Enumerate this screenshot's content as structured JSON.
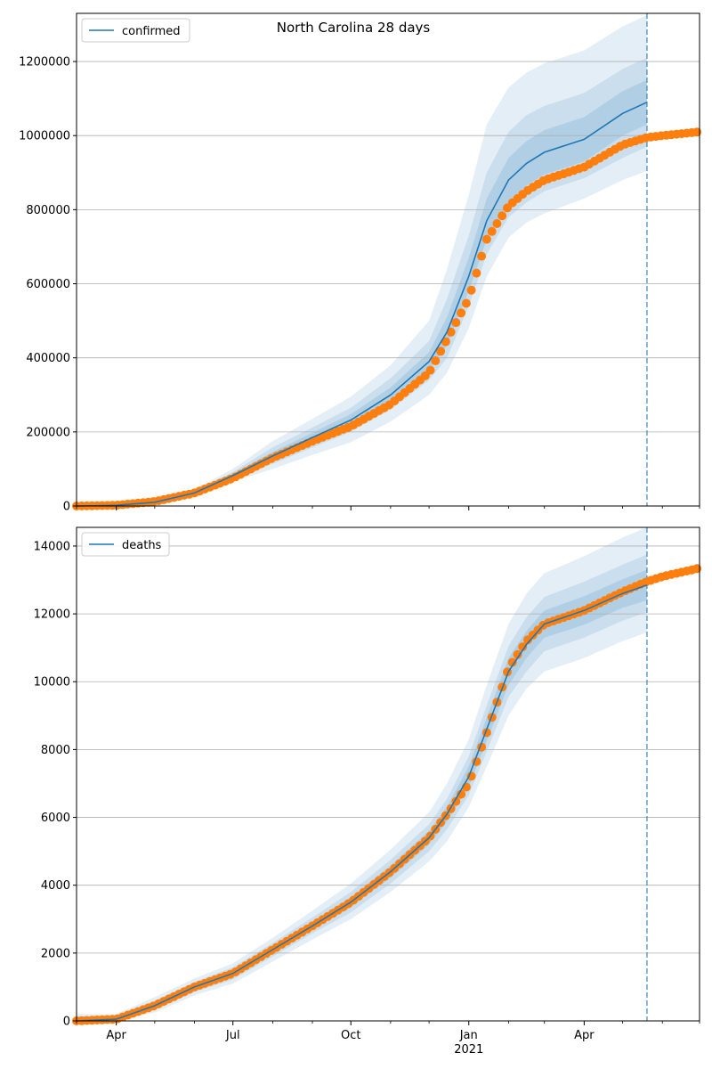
{
  "figure": {
    "title": "North Carolina 28 days",
    "colors": {
      "model": "#1f77b4",
      "observed": "#ff7f0e",
      "band": "#1f77b4",
      "grid": "#b0b0b0"
    }
  },
  "x_axis": {
    "type": "date",
    "range": [
      "2020-03-01",
      "2021-06-30"
    ],
    "major_ticks": [
      {
        "date": "2020-04-01",
        "label": "Apr"
      },
      {
        "date": "2020-07-01",
        "label": "Jul"
      },
      {
        "date": "2020-10-01",
        "label": "Oct"
      },
      {
        "date": "2021-01-01",
        "label": "Jan"
      },
      {
        "date": "2021-04-01",
        "label": "Apr"
      }
    ],
    "year_label": {
      "date": "2021-01-01",
      "label": "2021"
    },
    "minor_ticks": [
      "2020-03-01",
      "2020-05-01",
      "2020-06-01",
      "2020-08-01",
      "2020-09-01",
      "2020-11-01",
      "2020-12-01",
      "2021-02-01",
      "2021-03-01",
      "2021-05-01",
      "2021-06-01",
      "2021-06-30"
    ],
    "forecast_date": "2021-05-20"
  },
  "chart_data": [
    {
      "type": "line",
      "legend": "confirmed",
      "legend_position": "top-left",
      "ylim": [
        0,
        1330000
      ],
      "yticks": [
        {
          "value": 0,
          "label": "0"
        },
        {
          "value": 200000,
          "label": "200000"
        },
        {
          "value": 400000,
          "label": "400000"
        },
        {
          "value": 600000,
          "label": "600000"
        },
        {
          "value": 800000,
          "label": "800000"
        },
        {
          "value": 1000000,
          "label": "1000000"
        },
        {
          "value": 1200000,
          "label": "1200000"
        }
      ],
      "grid": "horizontal",
      "model": {
        "x": [
          "2020-03-01",
          "2020-04-01",
          "2020-05-01",
          "2020-06-01",
          "2020-07-01",
          "2020-08-01",
          "2020-09-01",
          "2020-10-01",
          "2020-11-01",
          "2020-12-01",
          "2020-12-15",
          "2021-01-01",
          "2021-01-15",
          "2021-02-01",
          "2021-02-15",
          "2021-03-01",
          "2021-04-01",
          "2021-05-01",
          "2021-05-20"
        ],
        "y": [
          0,
          2000,
          10000,
          35000,
          82000,
          135000,
          185000,
          232000,
          300000,
          390000,
          470000,
          620000,
          770000,
          880000,
          925000,
          955000,
          990000,
          1060000,
          1090000
        ]
      },
      "bands": {
        "x": [
          "2020-03-01",
          "2020-04-01",
          "2020-05-01",
          "2020-06-01",
          "2020-07-01",
          "2020-08-01",
          "2020-09-01",
          "2020-10-01",
          "2020-11-01",
          "2020-12-01",
          "2020-12-15",
          "2021-01-01",
          "2021-01-15",
          "2021-02-01",
          "2021-02-15",
          "2021-03-01",
          "2021-04-01",
          "2021-05-01",
          "2021-05-20"
        ],
        "outer_upper": [
          5000,
          5000,
          15000,
          45000,
          100000,
          175000,
          235000,
          295000,
          380000,
          500000,
          640000,
          840000,
          1030000,
          1130000,
          1170000,
          1195000,
          1230000,
          1295000,
          1325000
        ],
        "outer_lower": [
          0,
          0,
          6000,
          26000,
          66000,
          100000,
          138000,
          172000,
          228000,
          300000,
          360000,
          480000,
          620000,
          725000,
          765000,
          790000,
          830000,
          880000,
          905000
        ],
        "mid_upper": [
          3000,
          3500,
          13000,
          40000,
          92000,
          158000,
          212000,
          265000,
          345000,
          445000,
          560000,
          730000,
          900000,
          1010000,
          1055000,
          1080000,
          1115000,
          1180000,
          1210000
        ],
        "mid_lower": [
          0,
          1000,
          8000,
          30000,
          72000,
          114000,
          158000,
          200000,
          260000,
          340000,
          400000,
          540000,
          680000,
          780000,
          820000,
          850000,
          885000,
          940000,
          970000
        ],
        "inner_upper": [
          2000,
          2500,
          11500,
          37500,
          87000,
          146000,
          198000,
          248000,
          320000,
          415000,
          510000,
          670000,
          830000,
          940000,
          985000,
          1015000,
          1050000,
          1120000,
          1150000
        ],
        "inner_lower": [
          0,
          1500,
          9000,
          32500,
          77000,
          124000,
          172000,
          216000,
          280000,
          365000,
          435000,
          580000,
          720000,
          820000,
          865000,
          895000,
          930000,
          1000000,
          1030000
        ]
      },
      "observed": {
        "x": [
          "2020-03-01",
          "2020-04-01",
          "2020-05-01",
          "2020-06-01",
          "2020-07-01",
          "2020-08-01",
          "2020-09-01",
          "2020-10-01",
          "2020-11-01",
          "2020-12-01",
          "2020-12-15",
          "2021-01-01",
          "2021-01-15",
          "2021-02-01",
          "2021-02-15",
          "2021-03-01",
          "2021-04-01",
          "2021-05-01",
          "2021-05-20",
          "2021-06-01",
          "2021-06-30"
        ],
        "y": [
          0,
          2000,
          12000,
          35000,
          75000,
          130000,
          175000,
          215000,
          275000,
          360000,
          450000,
          560000,
          720000,
          810000,
          850000,
          880000,
          915000,
          975000,
          995000,
          1000000,
          1010000
        ]
      }
    },
    {
      "type": "line",
      "legend": "deaths",
      "legend_position": "top-left",
      "ylim": [
        0,
        14550
      ],
      "yticks": [
        {
          "value": 0,
          "label": "0"
        },
        {
          "value": 2000,
          "label": "2000"
        },
        {
          "value": 4000,
          "label": "4000"
        },
        {
          "value": 6000,
          "label": "6000"
        },
        {
          "value": 8000,
          "label": "8000"
        },
        {
          "value": 10000,
          "label": "10000"
        },
        {
          "value": 12000,
          "label": "12000"
        },
        {
          "value": 14000,
          "label": "14000"
        }
      ],
      "grid": "horizontal",
      "model": {
        "x": [
          "2020-03-01",
          "2020-04-01",
          "2020-05-01",
          "2020-06-01",
          "2020-07-01",
          "2020-08-01",
          "2020-09-01",
          "2020-10-01",
          "2020-11-01",
          "2020-12-01",
          "2020-12-15",
          "2021-01-01",
          "2021-01-15",
          "2021-02-01",
          "2021-02-15",
          "2021-03-01",
          "2021-04-01",
          "2021-05-01",
          "2021-05-20"
        ],
        "y": [
          0,
          50,
          450,
          1000,
          1400,
          2100,
          2800,
          3500,
          4400,
          5400,
          6100,
          7200,
          8600,
          10300,
          11100,
          11700,
          12100,
          12600,
          12850
        ]
      },
      "bands": {
        "x": [
          "2020-03-01",
          "2020-04-01",
          "2020-05-01",
          "2020-06-01",
          "2020-07-01",
          "2020-08-01",
          "2020-09-01",
          "2020-10-01",
          "2020-11-01",
          "2020-12-01",
          "2020-12-15",
          "2021-01-01",
          "2021-01-15",
          "2021-02-01",
          "2021-02-15",
          "2021-03-01",
          "2021-04-01",
          "2021-05-01",
          "2021-05-20"
        ],
        "outer_upper": [
          200,
          200,
          700,
          1250,
          1700,
          2450,
          3250,
          4050,
          5050,
          6150,
          7000,
          8300,
          9900,
          11700,
          12600,
          13200,
          13700,
          14250,
          14550
        ],
        "outer_lower": [
          0,
          0,
          250,
          750,
          1100,
          1750,
          2400,
          3000,
          3800,
          4700,
          5300,
          6300,
          7500,
          9000,
          9800,
          10300,
          10700,
          11200,
          11450
        ],
        "mid_upper": [
          130,
          150,
          600,
          1150,
          1580,
          2300,
          3050,
          3800,
          4750,
          5800,
          6550,
          7800,
          9300,
          11050,
          11900,
          12500,
          12950,
          13450,
          13750
        ],
        "mid_lower": [
          0,
          0,
          320,
          850,
          1220,
          1900,
          2580,
          3200,
          4050,
          5000,
          5650,
          6650,
          7950,
          9550,
          10300,
          10900,
          11300,
          11800,
          12050
        ],
        "inner_upper": [
          80,
          100,
          530,
          1080,
          1500,
          2200,
          2920,
          3650,
          4580,
          5600,
          6320,
          7500,
          8950,
          10700,
          11500,
          12100,
          12520,
          13020,
          13300
        ],
        "inner_lower": [
          0,
          0,
          380,
          920,
          1300,
          2000,
          2680,
          3350,
          4220,
          5200,
          5880,
          6900,
          8250,
          9900,
          10700,
          11300,
          11680,
          12180,
          12400
        ]
      },
      "observed": {
        "x": [
          "2020-03-01",
          "2020-04-01",
          "2020-05-01",
          "2020-06-01",
          "2020-07-01",
          "2020-08-01",
          "2020-09-01",
          "2020-10-01",
          "2020-11-01",
          "2020-12-01",
          "2020-12-15",
          "2021-01-01",
          "2021-01-15",
          "2021-02-01",
          "2021-02-15",
          "2021-03-01",
          "2021-04-01",
          "2021-05-01",
          "2021-05-20",
          "2021-06-01",
          "2021-06-30"
        ],
        "y": [
          0,
          50,
          450,
          1000,
          1400,
          2100,
          2800,
          3500,
          4400,
          5400,
          6100,
          7000,
          8500,
          10400,
          11200,
          11700,
          12100,
          12650,
          12950,
          13100,
          13350
        ]
      }
    }
  ]
}
